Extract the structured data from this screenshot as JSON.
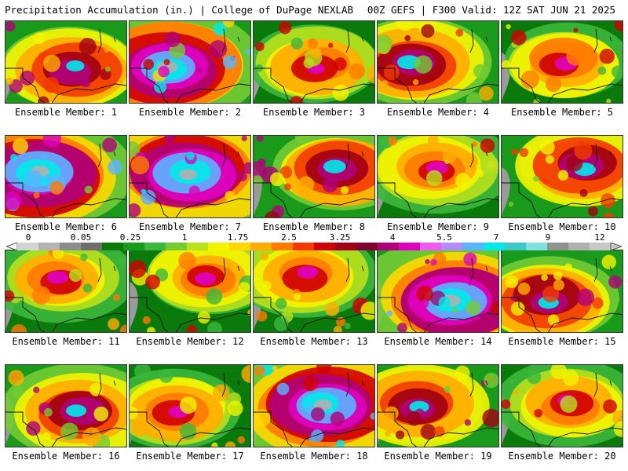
{
  "header": {
    "title": "Precipitation Accumulation (in.) | College of DuPage NEXLAB",
    "valid": "00Z GEFS | F300 Valid: 12Z SAT JUN 21 2025"
  },
  "legend": {
    "labels": [
      "0",
      "0.05",
      "0.25",
      "1",
      "1.75",
      "2.5",
      "3.25",
      "4",
      "5.5",
      "7",
      "9",
      "12"
    ],
    "colors": [
      "#d4d4d4",
      "#b4b4b4",
      "#8c8c8c",
      "#6e6e6e",
      "#0a7a0a",
      "#1a9a1a",
      "#3cb83c",
      "#74cc34",
      "#b8e01c",
      "#f4f400",
      "#ffd800",
      "#ffac00",
      "#ff7a00",
      "#f23a00",
      "#d00000",
      "#a00014",
      "#800030",
      "#b0007a",
      "#e000c0",
      "#f258f2",
      "#b48cff",
      "#5ab4ff",
      "#00eaea",
      "#40c8c8",
      "#80e0e0",
      "#909090",
      "#b0b0b0",
      "#c8c8c8"
    ]
  },
  "members": [
    {
      "label": "Ensemble Member: 1",
      "hue": "red"
    },
    {
      "label": "Ensemble Member: 2",
      "hue": "magenta"
    },
    {
      "label": "Ensemble Member: 3",
      "hue": "orange"
    },
    {
      "label": "Ensemble Member: 4",
      "hue": "red"
    },
    {
      "label": "Ensemble Member: 5",
      "hue": "orange"
    },
    {
      "label": "Ensemble Member: 6",
      "hue": "magenta"
    },
    {
      "label": "Ensemble Member: 7",
      "hue": "magenta"
    },
    {
      "label": "Ensemble Member: 8",
      "hue": "red"
    },
    {
      "label": "Ensemble Member: 9",
      "hue": "orange"
    },
    {
      "label": "Ensemble Member: 10",
      "hue": "red"
    },
    {
      "label": "Ensemble Member: 11",
      "hue": "orange"
    },
    {
      "label": "Ensemble Member: 12",
      "hue": "orange"
    },
    {
      "label": "Ensemble Member: 13",
      "hue": "orange"
    },
    {
      "label": "Ensemble Member: 14",
      "hue": "magenta"
    },
    {
      "label": "Ensemble Member: 15",
      "hue": "red"
    },
    {
      "label": "Ensemble Member: 16",
      "hue": "red"
    },
    {
      "label": "Ensemble Member: 17",
      "hue": "orange"
    },
    {
      "label": "Ensemble Member: 18",
      "hue": "magenta"
    },
    {
      "label": "Ensemble Member: 19",
      "hue": "red"
    },
    {
      "label": "Ensemble Member: 20",
      "hue": "orange"
    }
  ]
}
